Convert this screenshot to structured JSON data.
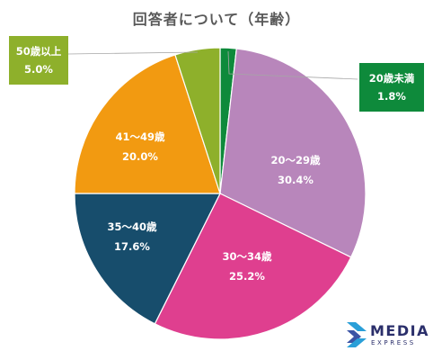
{
  "chart_data": {
    "type": "pie",
    "title": "回答者について（年齢）",
    "slices": [
      {
        "label": "20歳未満",
        "pct_label": "1.8%",
        "value": 1.8,
        "color": "#0e8a3b"
      },
      {
        "label": "20〜29歳",
        "pct_label": "30.4%",
        "value": 30.4,
        "color": "#b886bb"
      },
      {
        "label": "30〜34歳",
        "pct_label": "25.2%",
        "value": 25.2,
        "color": "#df3f8f"
      },
      {
        "label": "35〜40歳",
        "pct_label": "17.6%",
        "value": 17.6,
        "color": "#174d6c"
      },
      {
        "label": "41〜49歳",
        "pct_label": "20.0%",
        "value": 20.0,
        "color": "#f29a11"
      },
      {
        "label": "50歳以上",
        "pct_label": "5.0%",
        "value": 5.0,
        "color": "#8eb02b"
      }
    ]
  },
  "logo": {
    "main": "MEDIA",
    "sub": "EXPRESS"
  }
}
